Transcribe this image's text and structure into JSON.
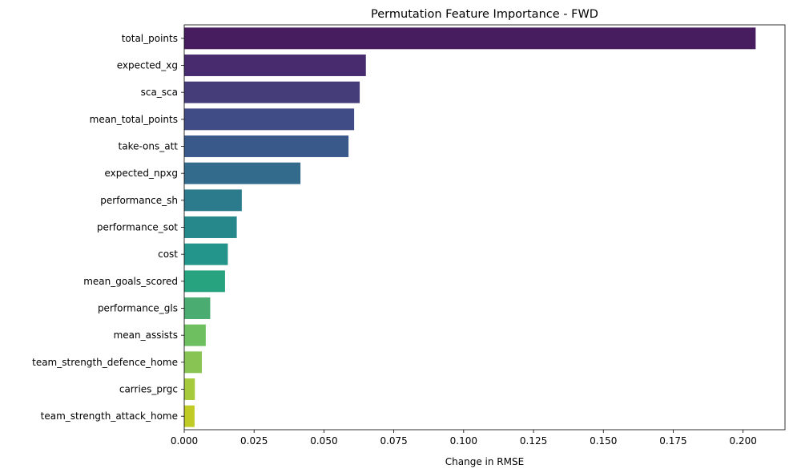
{
  "chart_data": {
    "type": "bar",
    "orientation": "horizontal",
    "title": "Permutation Feature Importance - FWD",
    "xlabel": "Change in RMSE",
    "ylabel": "",
    "xlim": [
      0,
      0.215
    ],
    "xticks": [
      0.0,
      0.025,
      0.05,
      0.075,
      0.1,
      0.125,
      0.15,
      0.175,
      0.2
    ],
    "xtick_labels": [
      "0.000",
      "0.025",
      "0.050",
      "0.075",
      "0.100",
      "0.125",
      "0.150",
      "0.175",
      "0.200"
    ],
    "grid": false,
    "palette": "viridis",
    "categories": [
      "total_points",
      "expected_xg",
      "sca_sca",
      "mean_total_points",
      "take-ons_att",
      "expected_npxg",
      "performance_sh",
      "performance_sot",
      "cost",
      "mean_goals_scored",
      "performance_gls",
      "mean_assists",
      "team_strength_defence_home",
      "carries_prgc",
      "team_strength_attack_home"
    ],
    "values": [
      0.2045,
      0.065,
      0.0628,
      0.0608,
      0.0588,
      0.0416,
      0.0206,
      0.0188,
      0.0156,
      0.0146,
      0.0093,
      0.0077,
      0.0063,
      0.0038,
      0.0037
    ],
    "colors": [
      "#471d60",
      "#482b6e",
      "#453c7a",
      "#3f4c85",
      "#39598a",
      "#336b8d",
      "#2b7b8d",
      "#26888b",
      "#23958a",
      "#28a37f",
      "#4aac71",
      "#6dbf5f",
      "#87c454",
      "#a5cb3c",
      "#c1cb26"
    ]
  }
}
